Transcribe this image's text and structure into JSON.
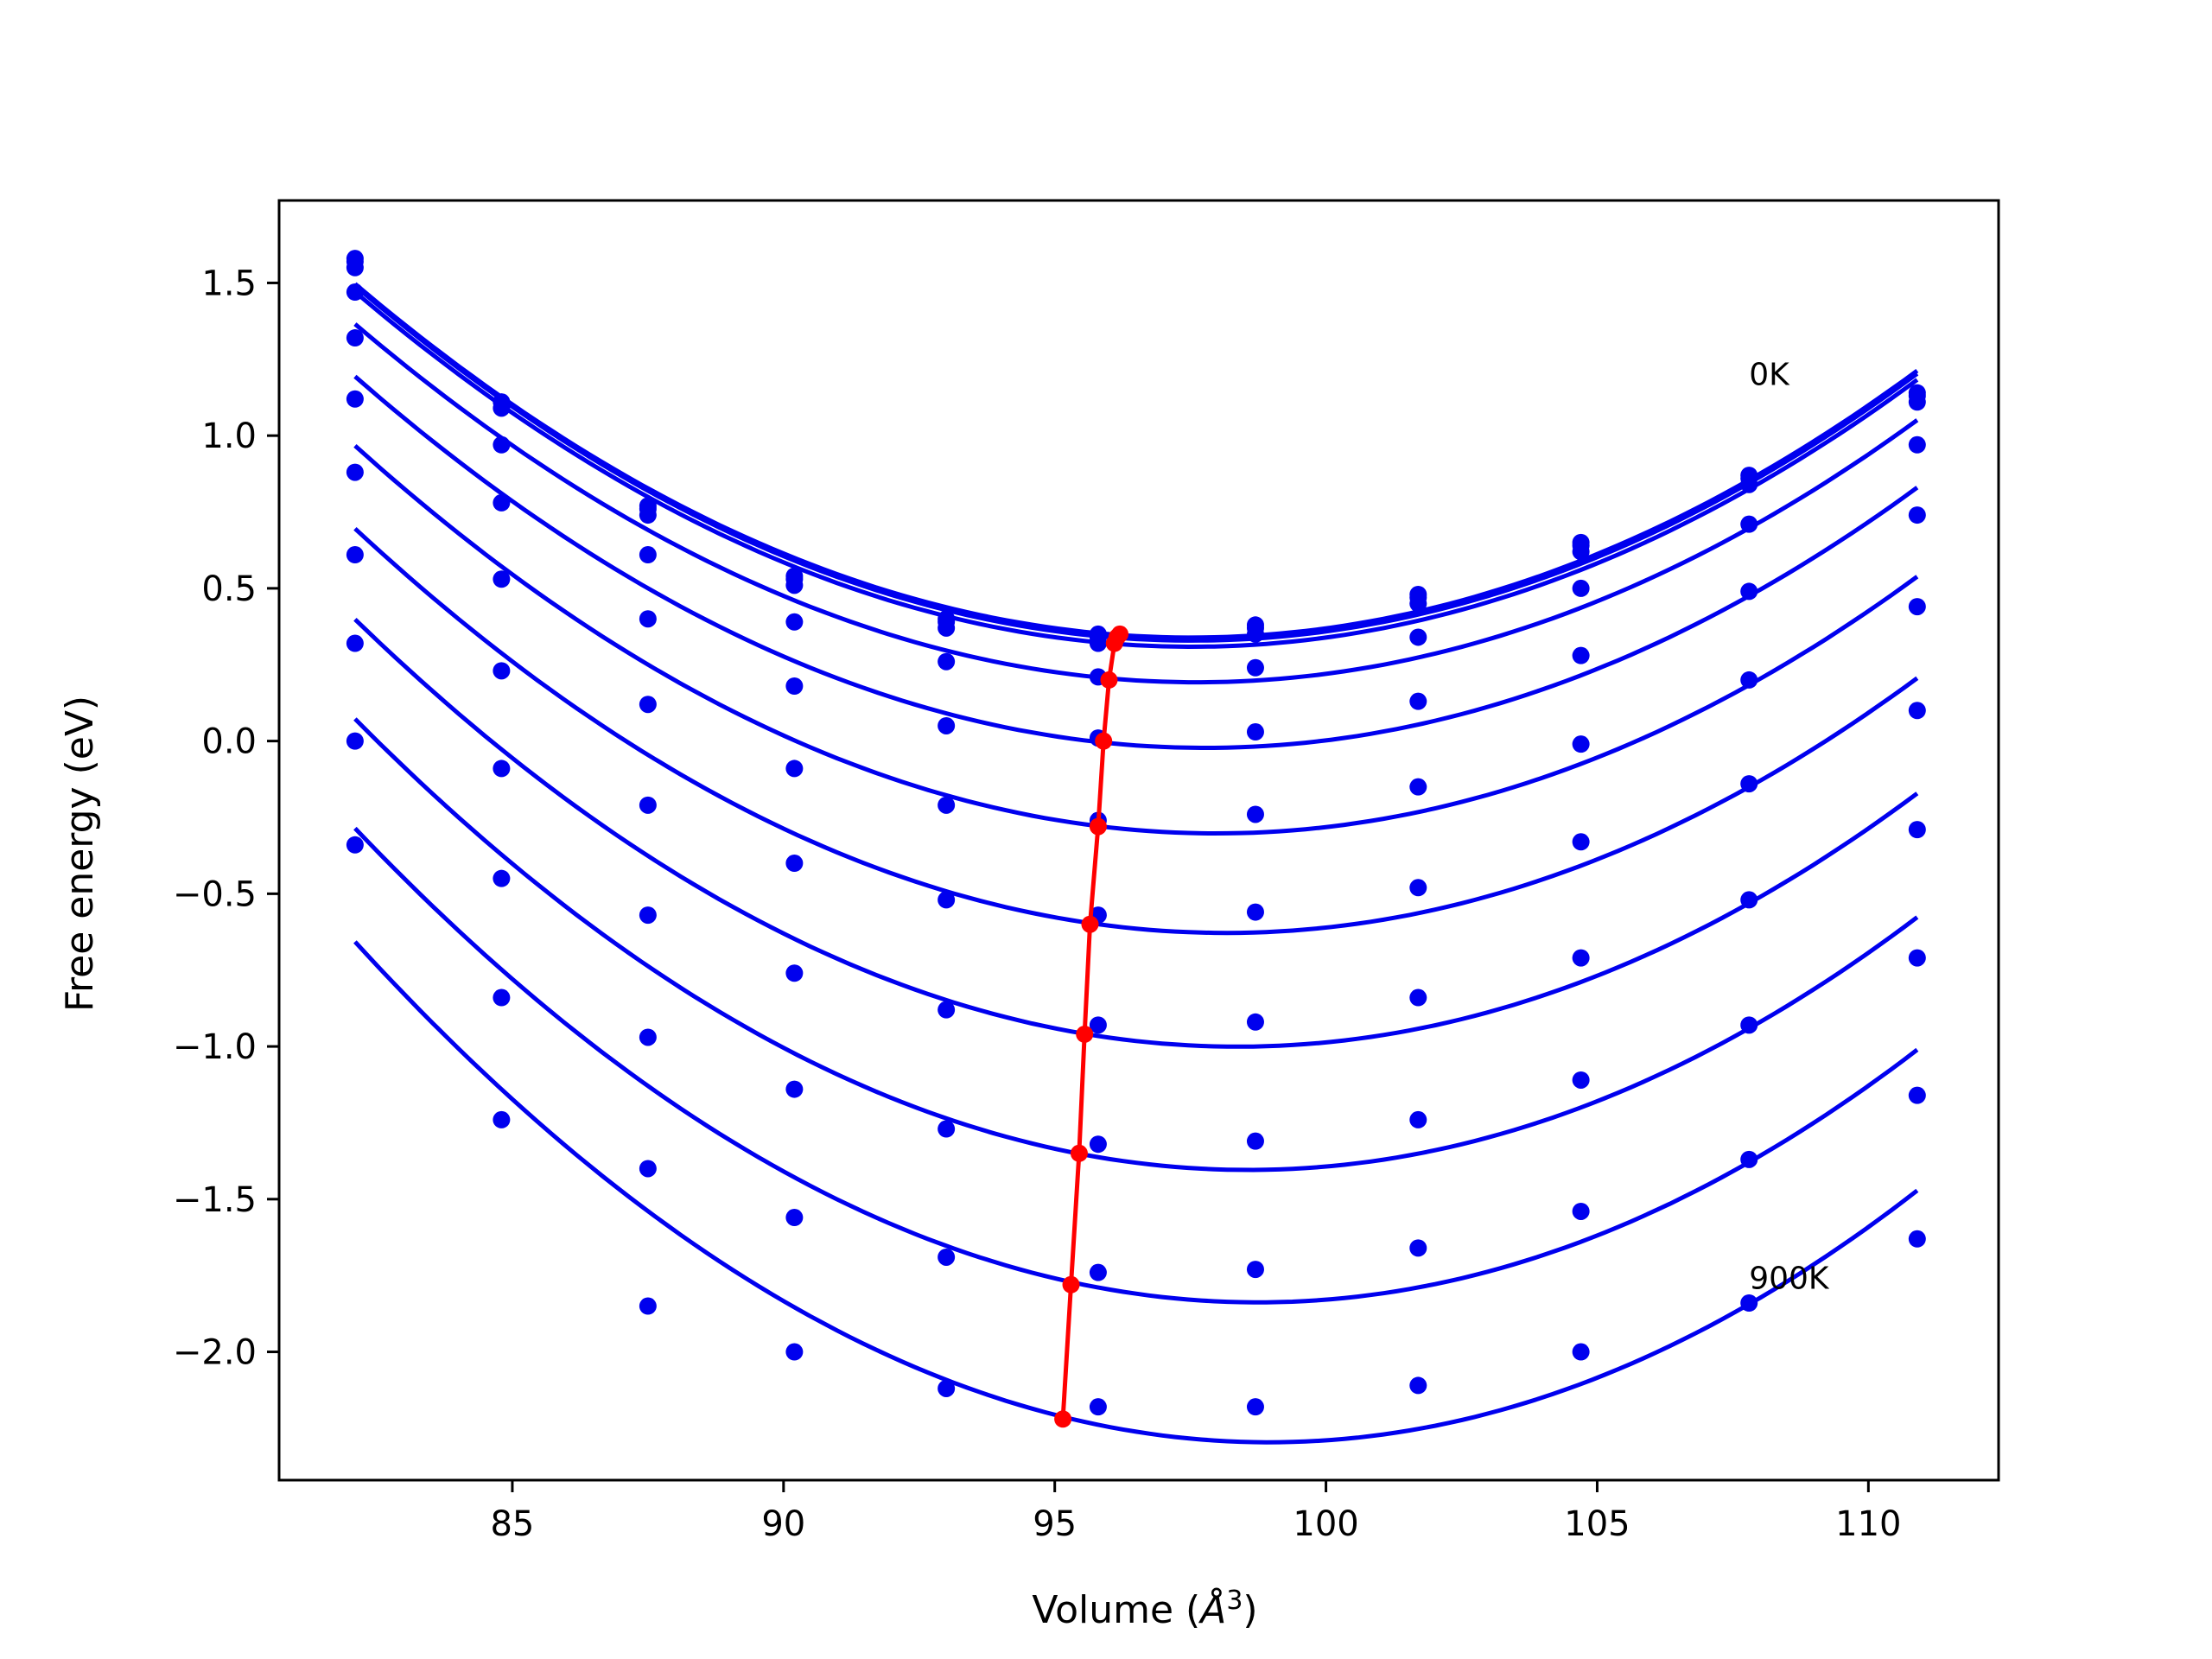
{
  "chart_data": {
    "type": "scatter",
    "title": "",
    "xlabel": "Volume (",
    "xlabel_unit": "Å",
    "xlabel_exp": "3",
    "xlabel_close": ")",
    "ylabel": "Free energy (eV)",
    "xlim": [
      80.7,
      112.4
    ],
    "ylim": [
      -2.42,
      1.77
    ],
    "xticks": [
      85,
      90,
      95,
      100,
      105,
      110
    ],
    "xtick_labels": [
      "85",
      "90",
      "95",
      "100",
      "105",
      "110"
    ],
    "yticks": [
      1.5,
      1.0,
      0.5,
      0.0,
      -0.5,
      -1.0,
      -1.5,
      -2.0
    ],
    "ytick_labels": [
      "1.5",
      "1.0",
      "0.5",
      "0.0",
      "−0.5",
      "−1.0",
      "−1.5",
      "−2.0"
    ],
    "grid": false,
    "series_color": "#0000ee",
    "min_color": "#ff0000",
    "annotations": [
      {
        "text": "0K",
        "x": 107.8,
        "y": 1.2
      },
      {
        "text": "900K",
        "x": 107.8,
        "y": -1.76
      }
    ],
    "volumes": [
      82.1,
      84.8,
      87.5,
      90.2,
      93.0,
      95.8,
      98.7,
      101.7,
      104.7,
      107.8,
      110.9
    ],
    "series": [
      {
        "values": [
          1.58,
          1.11,
          0.77,
          0.54,
          0.4,
          0.35,
          0.38,
          0.48,
          0.65,
          0.87,
          1.14
        ],
        "min_volume": 96.2,
        "min_energy": 0.35
      },
      {
        "values": [
          1.57,
          1.11,
          0.76,
          0.53,
          0.39,
          0.34,
          0.37,
          0.47,
          0.64,
          0.86,
          1.13
        ],
        "min_volume": 96.15,
        "min_energy": 0.34
      },
      {
        "values": [
          1.55,
          1.09,
          0.74,
          0.51,
          0.37,
          0.32,
          0.35,
          0.45,
          0.62,
          0.84,
          1.11
        ],
        "min_volume": 96.1,
        "min_energy": 0.32
      },
      {
        "values": [
          1.47,
          0.97,
          0.61,
          0.39,
          0.26,
          0.21,
          0.24,
          0.34,
          0.5,
          0.71,
          0.97
        ],
        "min_volume": 96.0,
        "min_energy": 0.2
      },
      {
        "values": [
          1.32,
          0.78,
          0.4,
          0.18,
          0.05,
          0.01,
          0.03,
          0.13,
          0.28,
          0.49,
          0.74
        ],
        "min_volume": 95.9,
        "min_energy": 0.0
      },
      {
        "values": [
          1.12,
          0.53,
          0.12,
          -0.09,
          -0.21,
          -0.26,
          -0.24,
          -0.15,
          -0.01,
          0.2,
          0.44
        ],
        "min_volume": 95.8,
        "min_energy": -0.28
      },
      {
        "values": [
          0.88,
          0.23,
          -0.21,
          -0.4,
          -0.52,
          -0.57,
          -0.56,
          -0.48,
          -0.33,
          -0.14,
          0.1
        ],
        "min_volume": 95.65,
        "min_energy": -0.6
      },
      {
        "values": [
          0.61,
          -0.09,
          -0.57,
          -0.76,
          -0.88,
          -0.93,
          -0.92,
          -0.84,
          -0.71,
          -0.52,
          -0.29
        ],
        "min_volume": 95.55,
        "min_energy": -0.96
      },
      {
        "values": [
          0.32,
          -0.45,
          -0.97,
          -1.14,
          -1.27,
          -1.32,
          -1.31,
          -1.24,
          -1.11,
          -0.93,
          -0.71
        ],
        "min_volume": 95.45,
        "min_energy": -1.35
      },
      {
        "values": [
          0.0,
          -0.84,
          -1.4,
          -1.56,
          -1.69,
          -1.74,
          -1.73,
          -1.66,
          -1.54,
          -1.37,
          -1.16
        ],
        "min_volume": 95.3,
        "min_energy": -1.78
      },
      {
        "values": [
          -0.34,
          -1.24,
          -1.85,
          -2.0,
          -2.12,
          -2.18,
          -2.18,
          -2.11,
          -2.0,
          -1.84,
          -1.63
        ],
        "min_volume": 95.15,
        "min_energy": -2.22
      }
    ]
  }
}
